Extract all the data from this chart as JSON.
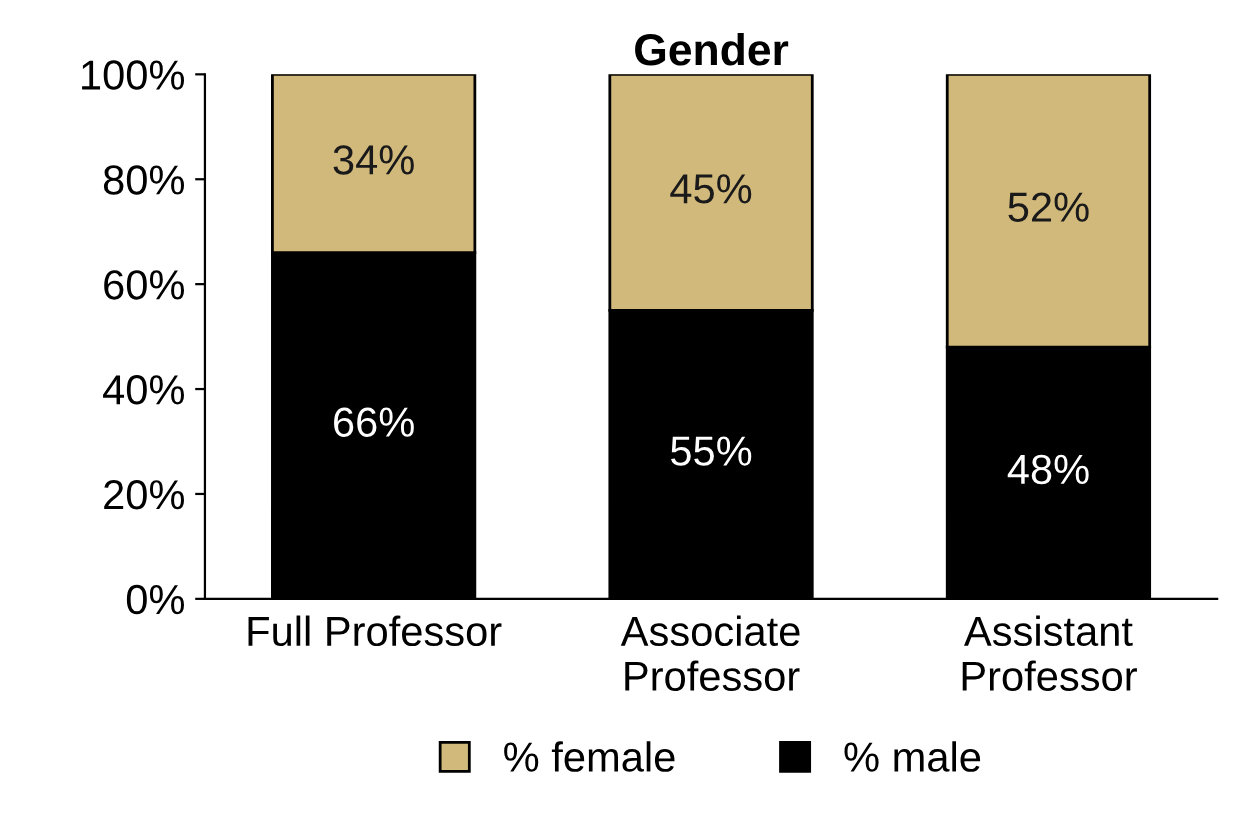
{
  "chart_data": {
    "type": "bar",
    "stacked": true,
    "title": "Gender",
    "categories": [
      "Full Professor",
      "Associate\nProfessor",
      "Assistant\nProfessor"
    ],
    "series": [
      {
        "name": "% male",
        "color": "#000000",
        "values": [
          66,
          55,
          48
        ],
        "value_labels": [
          "66%",
          "55%",
          "48%"
        ]
      },
      {
        "name": "% female",
        "color": "#d1b97c",
        "values": [
          34,
          45,
          52
        ],
        "value_labels": [
          "34%",
          "45%",
          "52%"
        ]
      }
    ],
    "ylim": [
      0,
      100
    ],
    "yticks": [
      {
        "value": 0,
        "label": "0%"
      },
      {
        "value": 20,
        "label": "20%"
      },
      {
        "value": 40,
        "label": "40%"
      },
      {
        "value": 60,
        "label": "60%"
      },
      {
        "value": 80,
        "label": "80%"
      },
      {
        "value": 100,
        "label": "100%"
      }
    ],
    "grid": false,
    "legend": "bottom"
  }
}
